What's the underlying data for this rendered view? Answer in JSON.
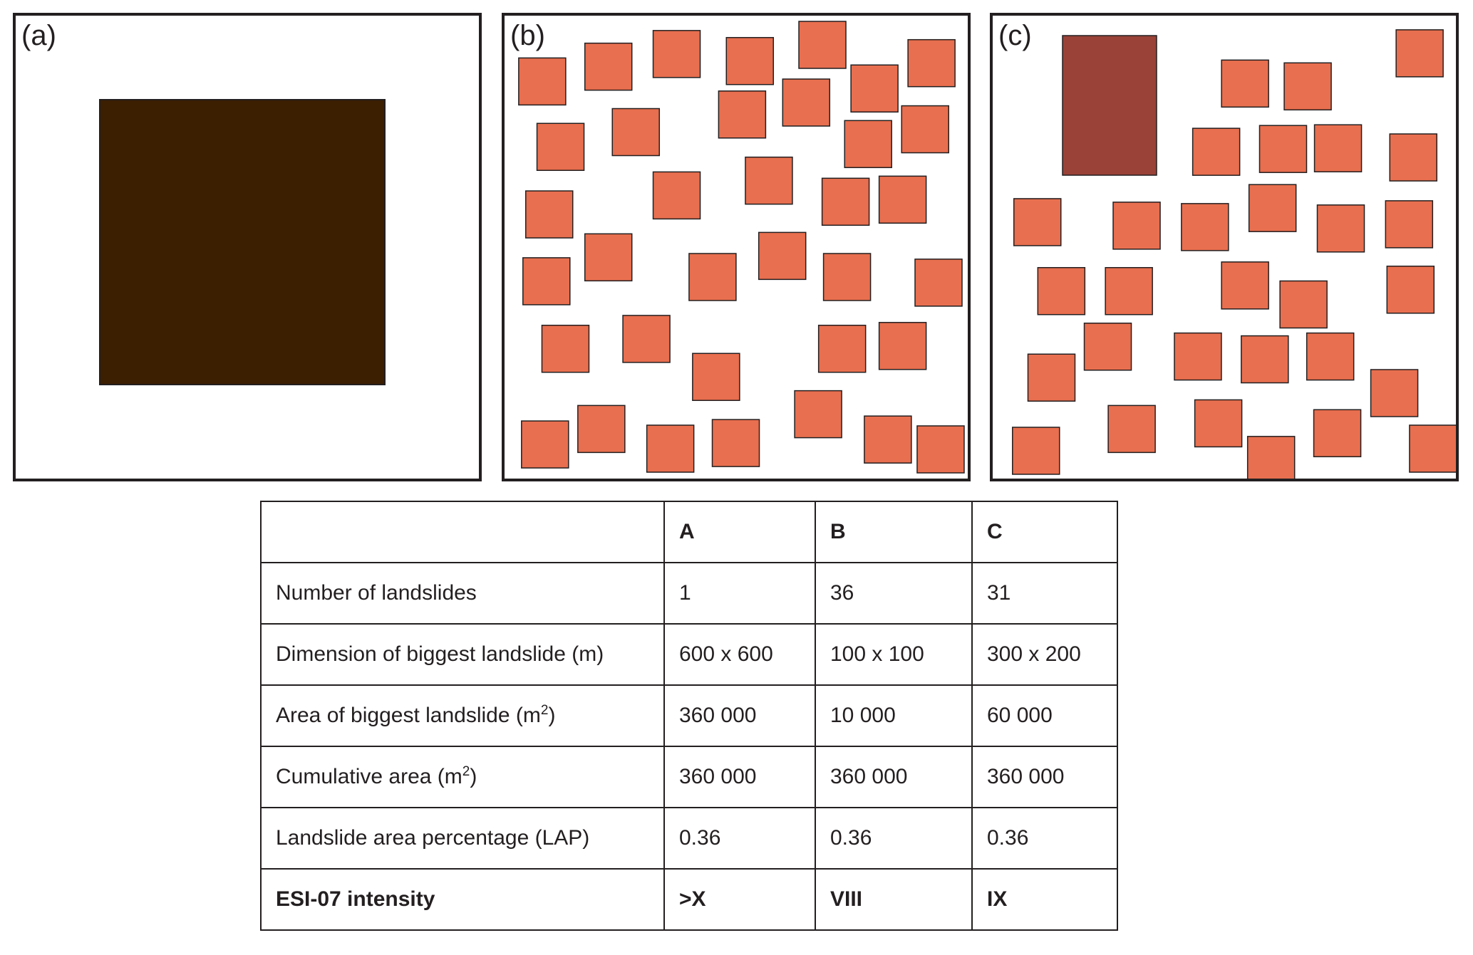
{
  "colors": {
    "border": "#231f20",
    "panel_a_fill": "#3c1e00",
    "small_landslide_fill": "#e86f4f",
    "panel_c_big_fill": "#9a4237"
  },
  "panels": {
    "a": {
      "label": "(a)"
    },
    "b": {
      "label": "(b)"
    },
    "c": {
      "label": "(c)"
    }
  },
  "table": {
    "header": [
      "",
      "A",
      "B",
      "C"
    ],
    "rows": [
      {
        "label": "Number of landslides",
        "sup": "",
        "suffix": "",
        "values": [
          "1",
          "36",
          "31"
        ]
      },
      {
        "label": "Dimension of biggest landslide (m)",
        "sup": "",
        "suffix": "",
        "values": [
          "600 x 600",
          "100 x 100",
          "300 x 200"
        ]
      },
      {
        "label": "Area of biggest landslide (m",
        "sup": "2",
        "suffix": ")",
        "values": [
          "360 000",
          "10 000",
          "60 000"
        ]
      },
      {
        "label": "Cumulative area (m",
        "sup": "2",
        "suffix": ")",
        "values": [
          "360 000",
          "360 000",
          "360 000"
        ]
      },
      {
        "label": "Landslide area percentage (LAP)",
        "sup": "",
        "suffix": "",
        "values": [
          "0.36",
          "0.36",
          "0.36"
        ]
      },
      {
        "label": "ESI-07 intensity",
        "sup": "",
        "suffix": "",
        "values": [
          ">X",
          "VIII",
          "IX"
        ]
      }
    ]
  }
}
